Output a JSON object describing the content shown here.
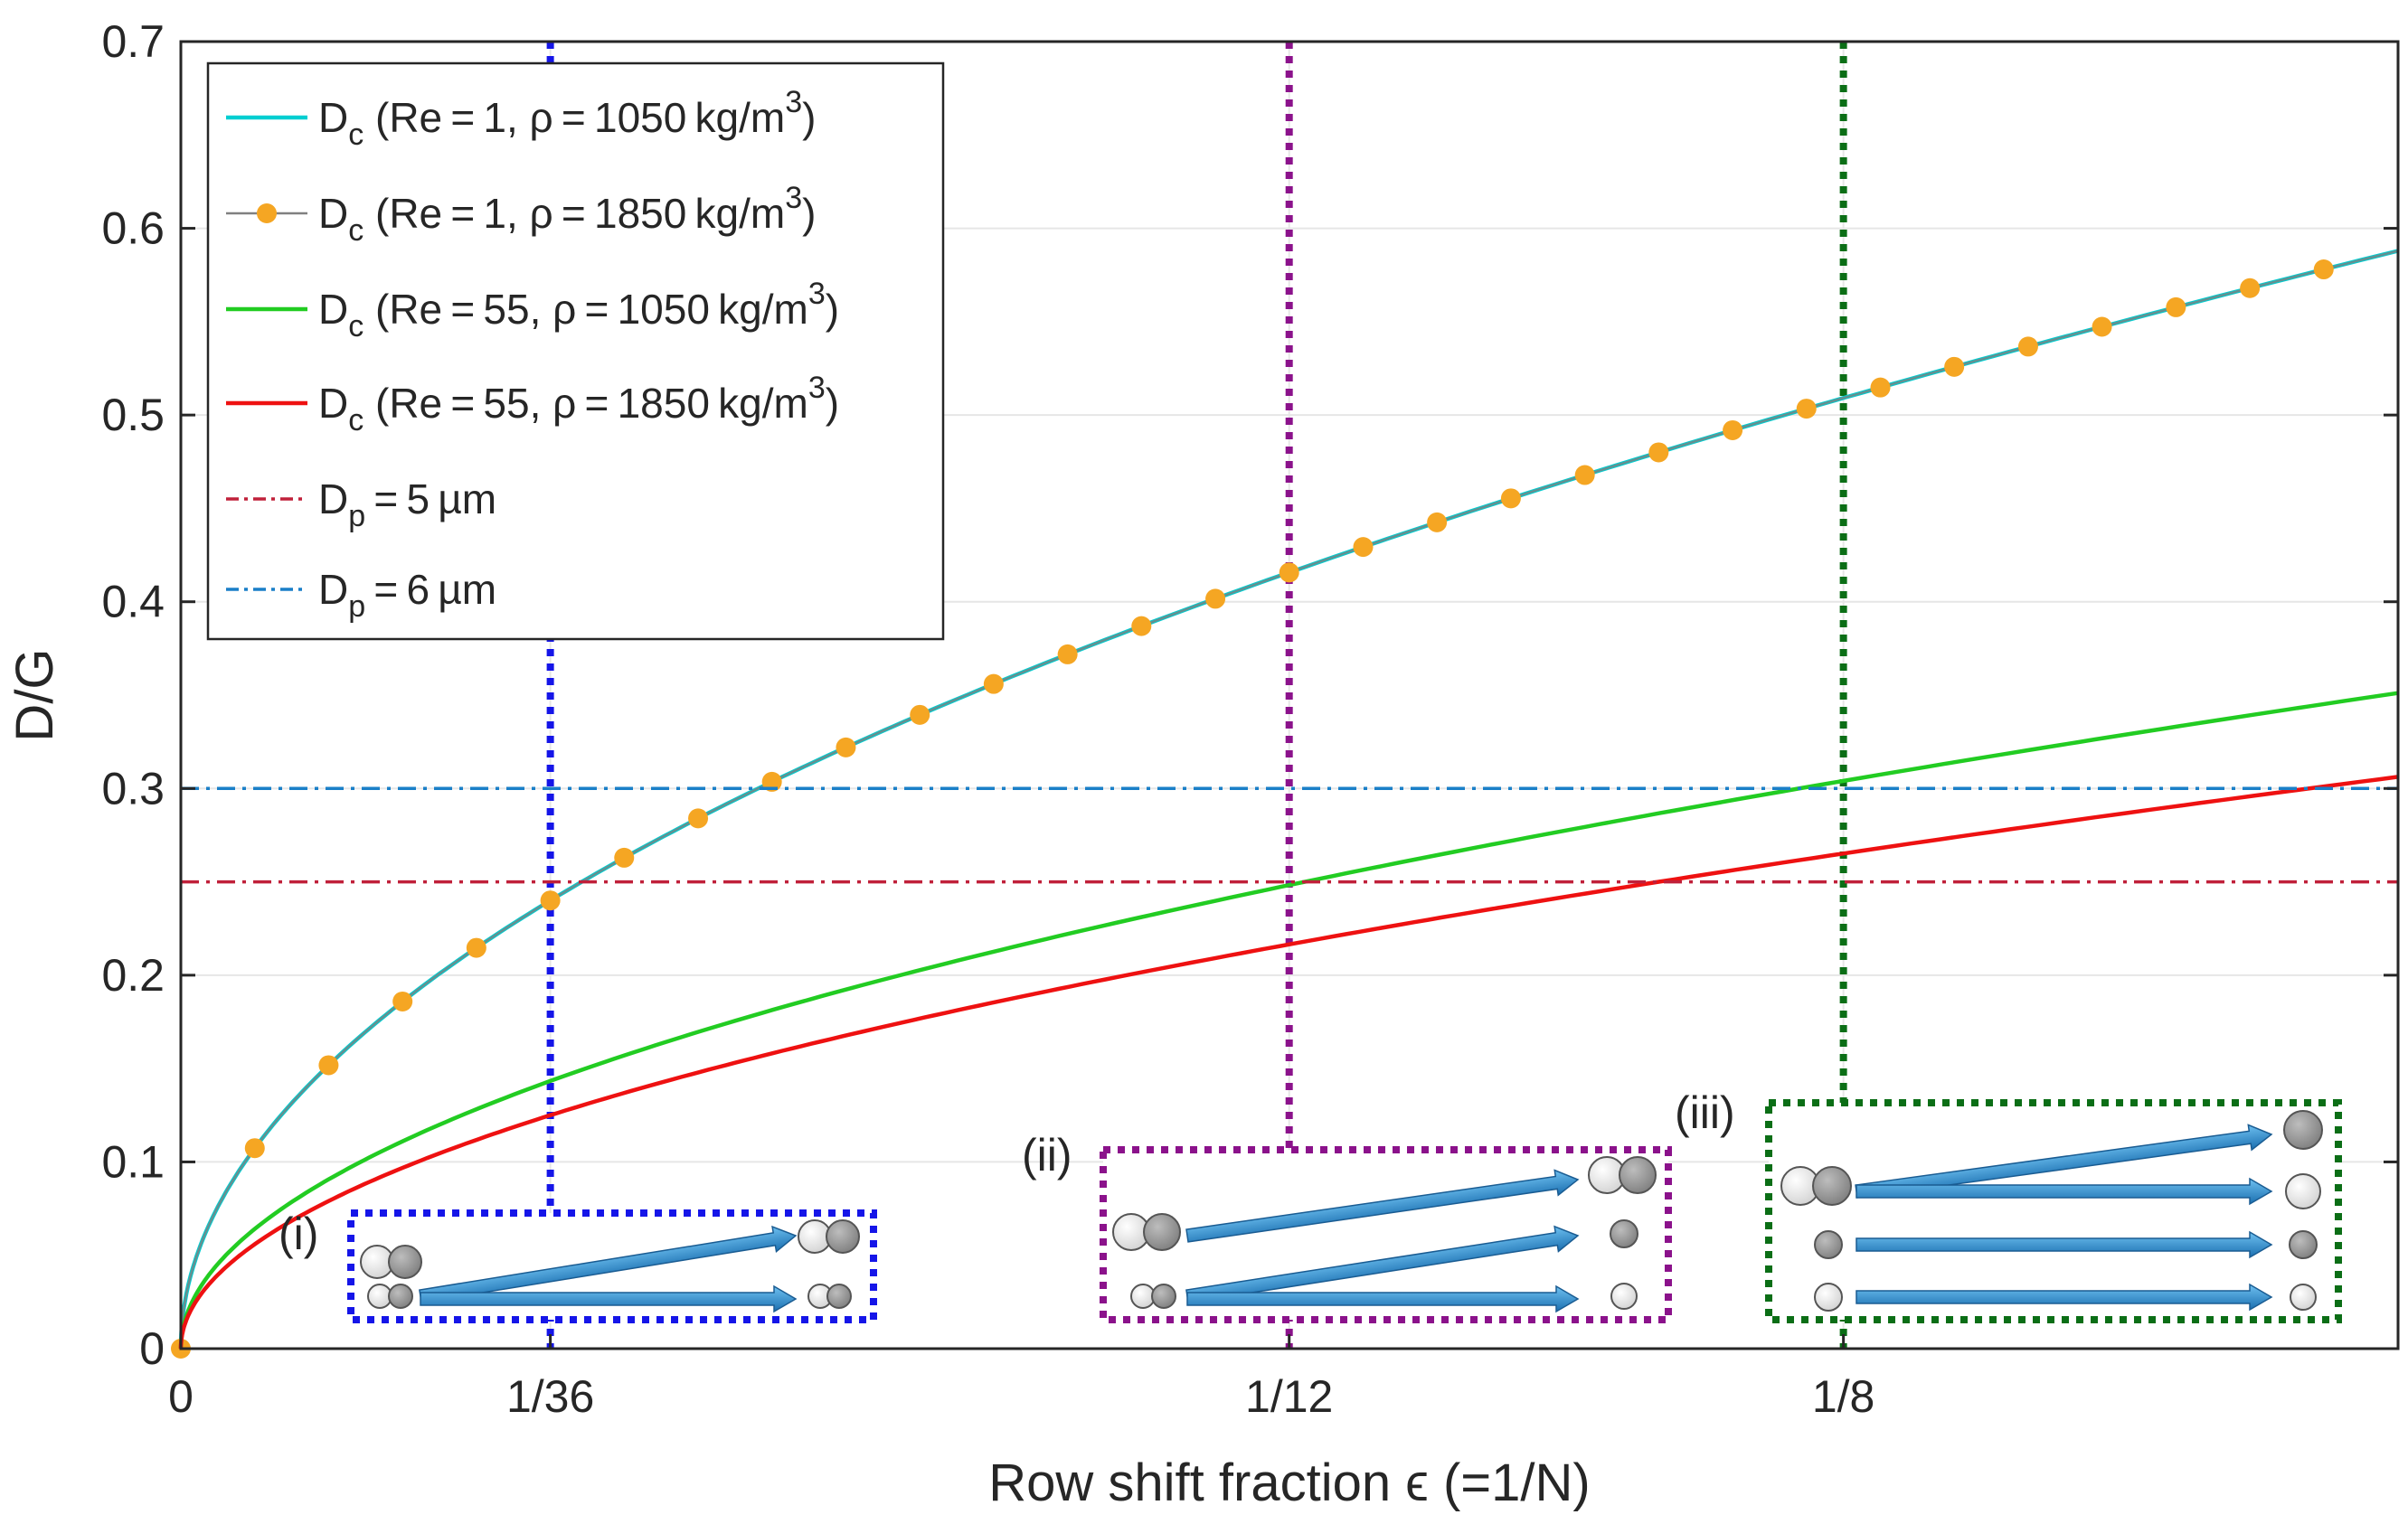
{
  "chart_data": {
    "type": "line",
    "xlabel": "Row shift fraction ϵ (=1/N)",
    "ylabel": "D/G",
    "xlim": [
      0,
      0.1667
    ],
    "ylim": [
      0,
      0.7
    ],
    "grid": true,
    "legend_position": "top-left",
    "x_ticks": [
      {
        "value": 0,
        "label": "0"
      },
      {
        "value": 0.02778,
        "label": "1/36"
      },
      {
        "value": 0.08333,
        "label": "1/12"
      },
      {
        "value": 0.125,
        "label": "1/8"
      }
    ],
    "y_ticks": [
      {
        "value": 0,
        "label": "0"
      },
      {
        "value": 0.1,
        "label": "0.1"
      },
      {
        "value": 0.2,
        "label": "0.2"
      },
      {
        "value": 0.3,
        "label": "0.3"
      },
      {
        "value": 0.4,
        "label": "0.4"
      },
      {
        "value": 0.5,
        "label": "0.5"
      },
      {
        "value": 0.6,
        "label": "0.6"
      },
      {
        "value": 0.7,
        "label": "0.7"
      }
    ],
    "series": [
      {
        "name": "Dc (Re = 1, ρ = 1050 kg/m3)",
        "legend_main": "D",
        "legend_sub": "c",
        "legend_rest": " (Re = 1, ρ = 1050 kg/m",
        "legend_sup": "3",
        "legend_close": ")",
        "color": "#00CED1",
        "style": "solid",
        "coef": 1.44,
        "exp": 0.5
      },
      {
        "name": "Dc (Re = 1, ρ = 1850 kg/m3)",
        "legend_main": "D",
        "legend_sub": "c",
        "legend_rest": " (Re = 1, ρ = 1850 kg/m",
        "legend_sup": "3",
        "legend_close": ")",
        "color": "#F5A623",
        "line_color": "#808080",
        "style": "markers",
        "coef": 1.44,
        "exp": 0.5
      },
      {
        "name": "Dc (Re = 55, ρ = 1050 kg/m3)",
        "legend_main": "D",
        "legend_sub": "c",
        "legend_rest": " (Re = 55, ρ = 1050 kg/m",
        "legend_sup": "3",
        "legend_close": ")",
        "color": "#22CC22",
        "style": "solid",
        "coef": 0.86,
        "exp": 0.5
      },
      {
        "name": "Dc (Re = 55, ρ = 1850 kg/m3)",
        "legend_main": "D",
        "legend_sub": "c",
        "legend_rest": " (Re = 55, ρ = 1850 kg/m",
        "legend_sup": "3",
        "legend_close": ")",
        "color": "#EE1111",
        "style": "solid",
        "coef": 0.75,
        "exp": 0.5
      },
      {
        "name": "Dp = 5 µm",
        "legend_main": "D",
        "legend_sub": "p",
        "legend_rest": " = 5 µm",
        "legend_sup": "",
        "legend_close": "",
        "color": "#C0203A",
        "style": "dashdot",
        "constant": 0.25
      },
      {
        "name": "Dp = 6 µm",
        "legend_main": "D",
        "legend_sub": "p",
        "legend_rest": " = 6 µm",
        "legend_sup": "",
        "legend_close": "",
        "color": "#1A7FC8",
        "style": "dashdot",
        "constant": 0.3
      }
    ],
    "markers_x": [
      0,
      0.00556,
      0.01111,
      0.01667,
      0.02222,
      0.02778,
      0.03333,
      0.03889,
      0.04444,
      0.05,
      0.05556,
      0.06111,
      0.06667,
      0.07222,
      0.07778,
      0.08333,
      0.08889,
      0.09444,
      0.1,
      0.10556,
      0.11111,
      0.11667,
      0.12222,
      0.12778,
      0.13333,
      0.13889,
      0.14444,
      0.15,
      0.15556,
      0.16111
    ],
    "vertical_lines": [
      {
        "x": 0.02778,
        "color": "#1515E8"
      },
      {
        "x": 0.08333,
        "color": "#8B128B"
      },
      {
        "x": 0.125,
        "color": "#0B6E16"
      }
    ],
    "panels": [
      {
        "label": "(i)",
        "color": "#1515E8"
      },
      {
        "label": "(ii)",
        "color": "#8B128B"
      },
      {
        "label": "(iii)",
        "color": "#0B6E16"
      }
    ]
  }
}
